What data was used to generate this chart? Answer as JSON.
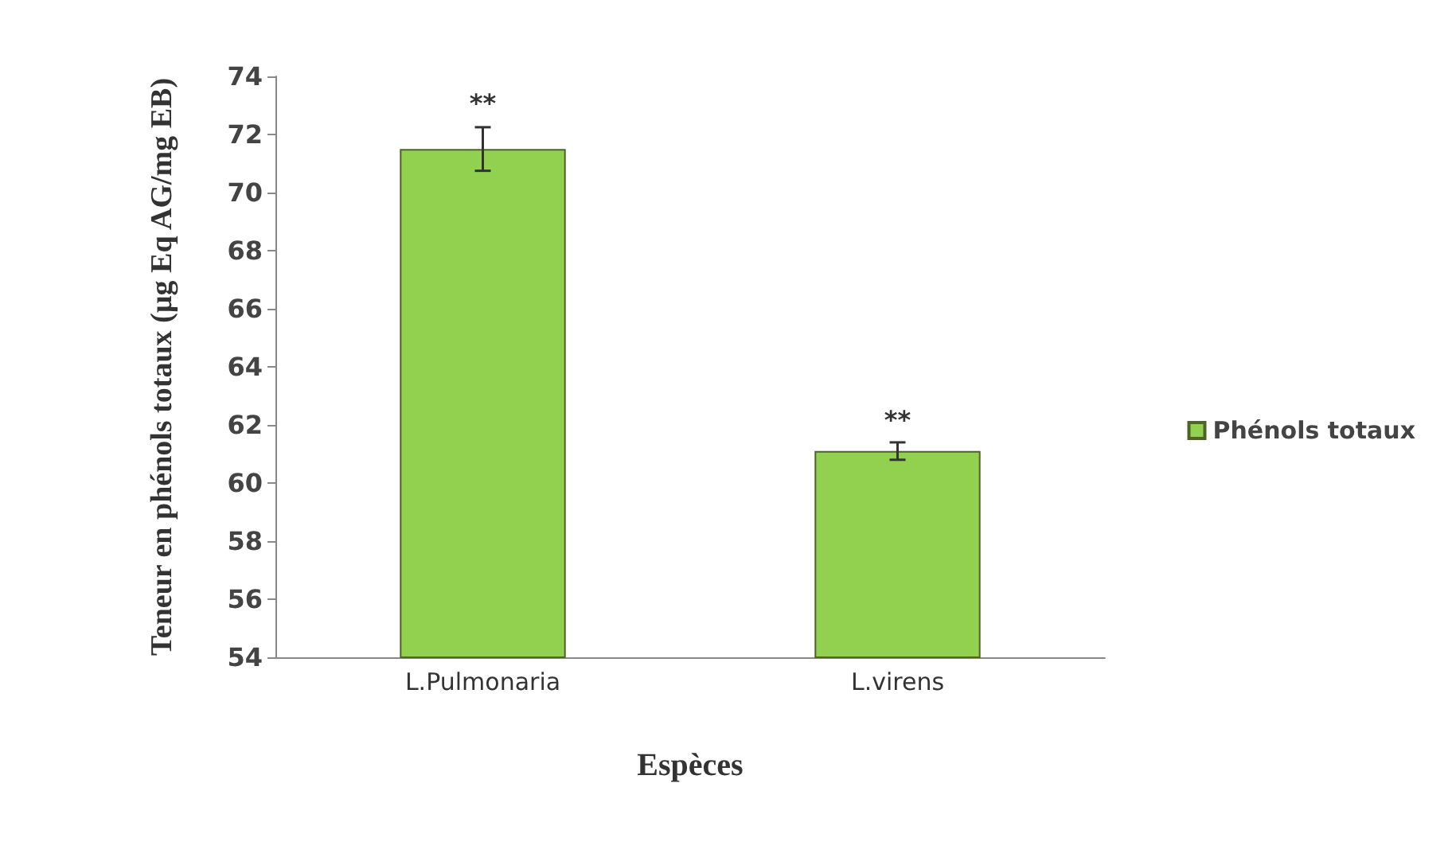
{
  "chart_data": {
    "type": "bar",
    "xlabel": "Espèces",
    "ylabel": "Teneur en phénols totaux (µg Eq AG/mg EB)",
    "categories": [
      "L.Pulmonaria",
      "L.virens"
    ],
    "series": [
      {
        "name": "Phénols totaux",
        "color": "#92d050",
        "values": [
          71.5,
          61.1
        ],
        "errors": [
          0.75,
          0.3
        ]
      }
    ],
    "ylim": [
      54,
      74
    ],
    "yticks": [
      54,
      56,
      58,
      60,
      62,
      64,
      66,
      68,
      70,
      72,
      74
    ],
    "grid": false,
    "legend": "right",
    "annotations": [
      {
        "text": "**",
        "x": "L.Pulmonaria",
        "y": 72.3
      },
      {
        "text": "**",
        "x": "L.virens",
        "y": 61.4
      }
    ]
  }
}
